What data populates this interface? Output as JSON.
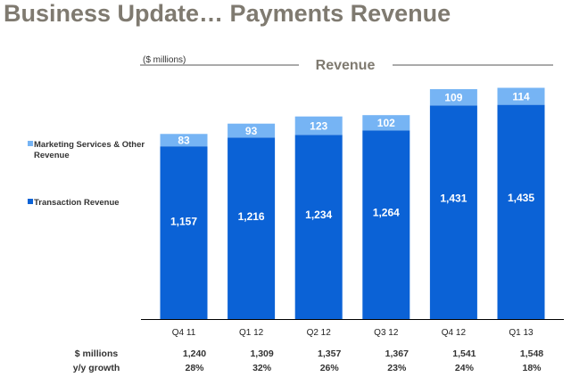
{
  "page_title": "Business Update… Payments Revenue",
  "colors": {
    "title": "#7f7a70",
    "transaction": "#0b62d6",
    "marketing": "#76b4f4",
    "axis": "#000000",
    "line": "#555555"
  },
  "chart_data": {
    "type": "bar",
    "stacked": true,
    "title": "Revenue",
    "units_label": "($ millions)",
    "categories": [
      "Q4 11",
      "Q1 12",
      "Q2 12",
      "Q3 12",
      "Q4 12",
      "Q1 13"
    ],
    "series": [
      {
        "name": "Transaction Revenue",
        "values": [
          1157,
          1216,
          1234,
          1264,
          1431,
          1435
        ]
      },
      {
        "name": "Marketing Services & Other Revenue",
        "values": [
          83,
          93,
          123,
          102,
          109,
          114
        ]
      }
    ],
    "value_labels": {
      "Transaction Revenue": [
        "1,157",
        "1,216",
        "1,234",
        "1,264",
        "1,431",
        "1,435"
      ],
      "Marketing Services & Other Revenue": [
        "83",
        "93",
        "123",
        "102",
        "109",
        "114"
      ]
    },
    "legend": [
      {
        "series": "Marketing Services & Other Revenue",
        "label_lines": [
          "Marketing Services & Other",
          "Revenue"
        ]
      },
      {
        "series": "Transaction Revenue",
        "label_lines": [
          "Transaction Revenue"
        ]
      }
    ],
    "legend_position": "left",
    "y_range": [
      0,
      1570
    ],
    "table": {
      "rows": [
        {
          "label": "$ millions",
          "values": [
            "1,240",
            "1,309",
            "1,357",
            "1,367",
            "1,541",
            "1,548"
          ]
        },
        {
          "label": "y/y growth",
          "values": [
            "28%",
            "32%",
            "26%",
            "23%",
            "24%",
            "18%"
          ]
        }
      ]
    }
  }
}
